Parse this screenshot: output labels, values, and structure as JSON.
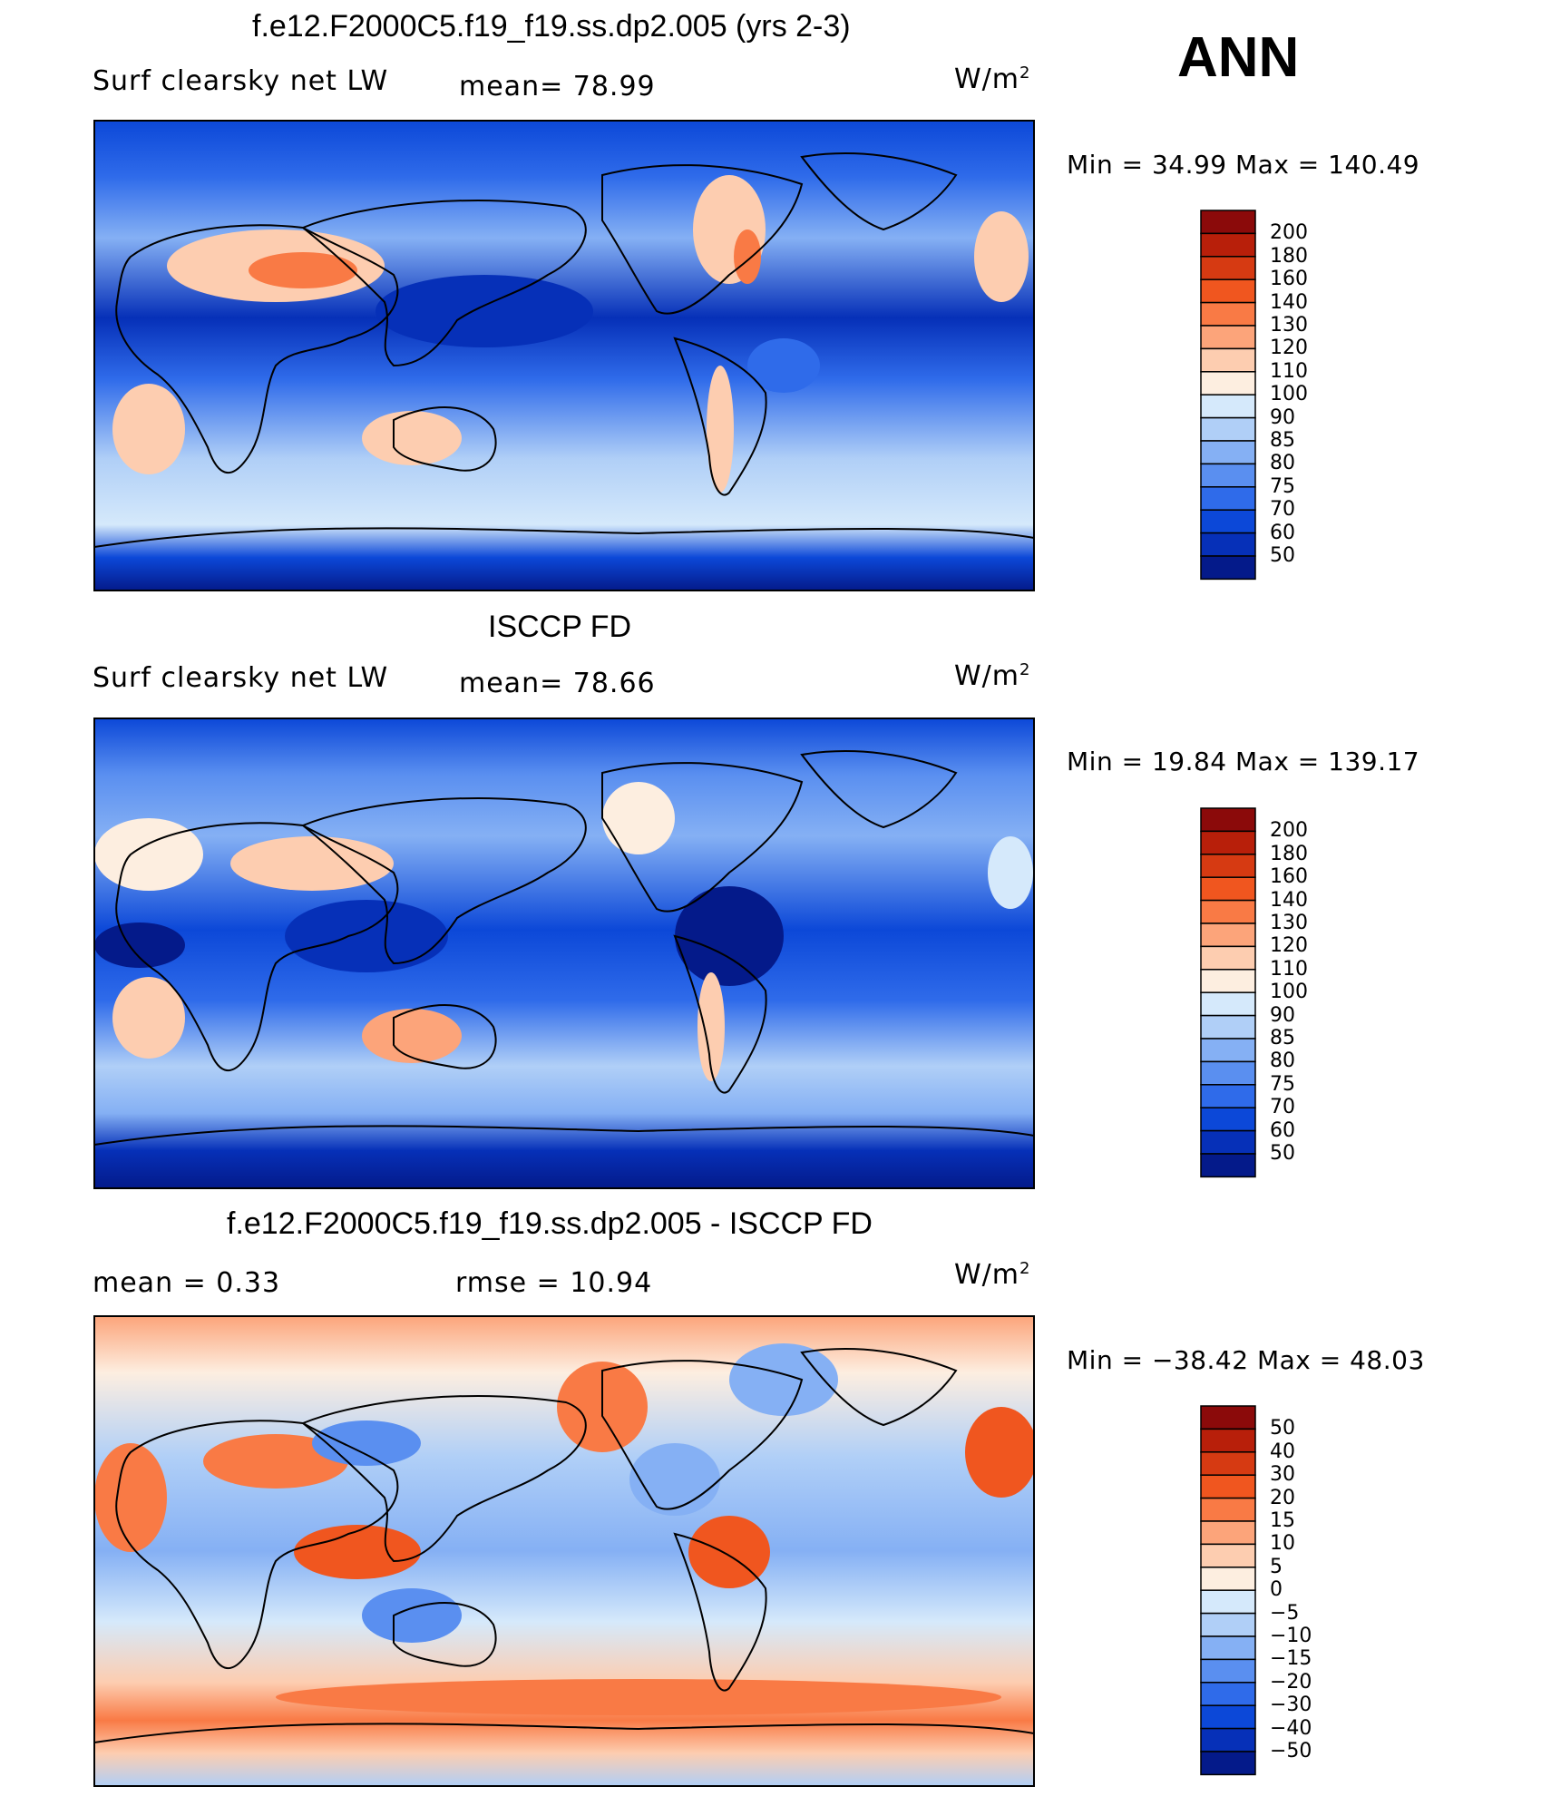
{
  "season": "ANN",
  "units_main": "W/m",
  "units_sup": "2",
  "panels": [
    {
      "title": "f.e12.F2000C5.f19_f19.ss.dp2.005 (yrs 2-3)",
      "left_label": "Surf clearsky net LW",
      "mid_label": "mean=   78.99",
      "minmax": "Min =   34.99  Max  =  140.49",
      "levels": [
        "200",
        "180",
        "160",
        "140",
        "130",
        "120",
        "110",
        "100",
        "90",
        "85",
        "80",
        "75",
        "70",
        "60",
        "50"
      ],
      "colors": [
        "#8b0a0a",
        "#b81f0a",
        "#d63a12",
        "#f0561f",
        "#f97a45",
        "#fca47a",
        "#fdcdb0",
        "#fdeee0",
        "#d5e9fb",
        "#b0cff7",
        "#85b0f4",
        "#5a8ff0",
        "#2f6bea",
        "#0c48d8",
        "#0630b8",
        "#041a8a"
      ]
    },
    {
      "title": "ISCCP FD",
      "left_label": "Surf clearsky net LW",
      "mid_label": "mean=   78.66",
      "minmax": "Min =   19.84  Max  =  139.17",
      "levels": [
        "200",
        "180",
        "160",
        "140",
        "130",
        "120",
        "110",
        "100",
        "90",
        "85",
        "80",
        "75",
        "70",
        "60",
        "50"
      ],
      "colors": [
        "#8b0a0a",
        "#b81f0a",
        "#d63a12",
        "#f0561f",
        "#f97a45",
        "#fca47a",
        "#fdcdb0",
        "#fdeee0",
        "#d5e9fb",
        "#b0cff7",
        "#85b0f4",
        "#5a8ff0",
        "#2f6bea",
        "#0c48d8",
        "#0630b8",
        "#041a8a"
      ]
    },
    {
      "title": "f.e12.F2000C5.f19_f19.ss.dp2.005 - ISCCP FD",
      "left_label": "mean =     0.33",
      "mid_label": "rmse =   10.94",
      "minmax": "Min = −38.42  Max =    48.03",
      "levels": [
        "50",
        "40",
        "30",
        "20",
        "15",
        "10",
        "5",
        "0",
        "−5",
        "−10",
        "−15",
        "−20",
        "−30",
        "−40",
        "−50"
      ],
      "colors": [
        "#8b0a0a",
        "#b81f0a",
        "#d63a12",
        "#f0561f",
        "#f97a45",
        "#fca47a",
        "#fdcdb0",
        "#fdeee0",
        "#d5e9fb",
        "#b0cff7",
        "#85b0f4",
        "#5a8ff0",
        "#2f6bea",
        "#0c48d8",
        "#0630b8",
        "#041a8a"
      ]
    }
  ]
}
